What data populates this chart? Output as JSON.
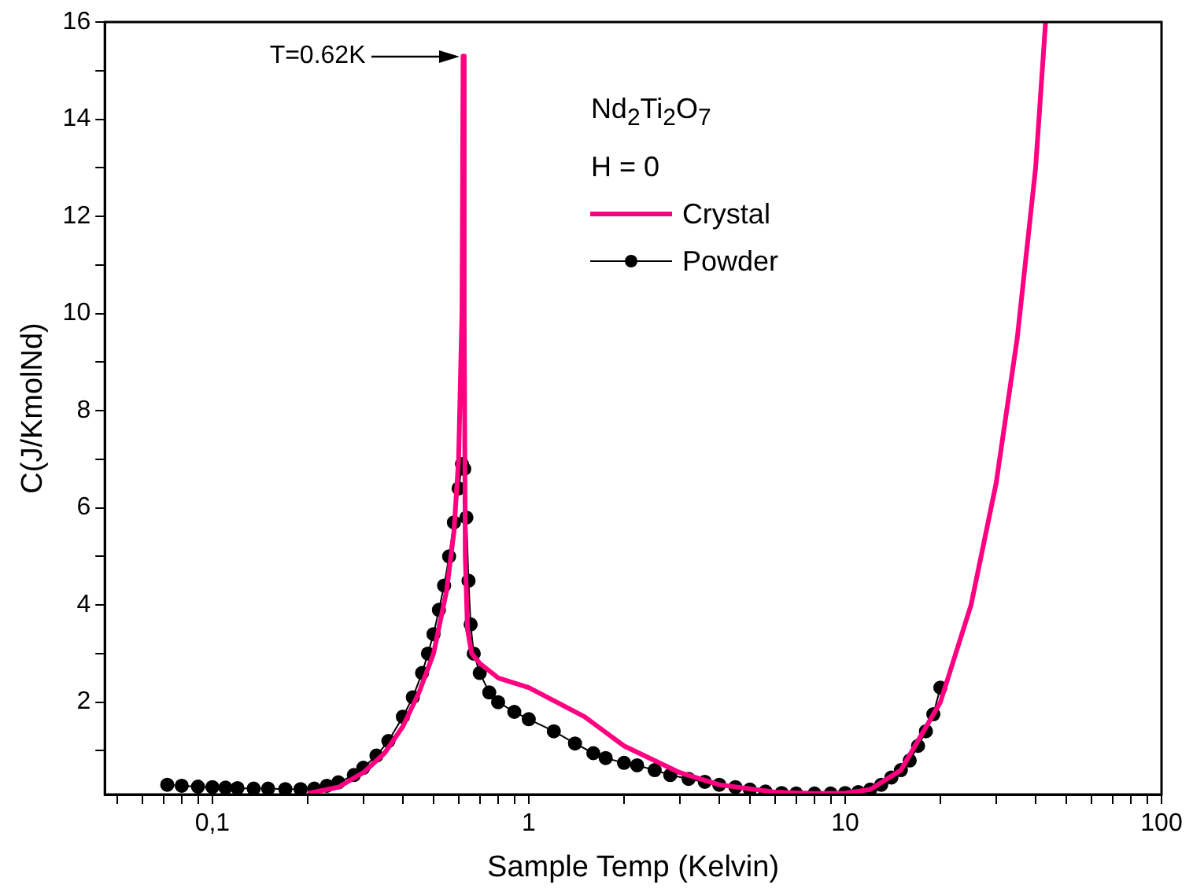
{
  "chart_data": {
    "type": "line",
    "xlabel": "Sample Temp (Kelvin)",
    "ylabel": "C(J/KmolNd)",
    "log": "x",
    "xlim": [
      0.0457,
      100
    ],
    "xticks": [
      {
        "value": 0.05,
        "label": null
      },
      {
        "value": 0.06,
        "label": null
      },
      {
        "value": 0.07,
        "label": null
      },
      {
        "value": 0.08,
        "label": null
      },
      {
        "value": 0.09,
        "label": null
      },
      {
        "value": 0.1,
        "label": "0,1"
      },
      {
        "value": 0.2,
        "label": null
      },
      {
        "value": 0.3,
        "label": null
      },
      {
        "value": 0.4,
        "label": null
      },
      {
        "value": 0.5,
        "label": null
      },
      {
        "value": 0.6,
        "label": null
      },
      {
        "value": 0.7,
        "label": null
      },
      {
        "value": 0.8,
        "label": null
      },
      {
        "value": 0.9,
        "label": null
      },
      1,
      {
        "value": 2,
        "label": null
      },
      {
        "value": 3,
        "label": null
      },
      {
        "value": 4,
        "label": null
      },
      {
        "value": 5,
        "label": null
      },
      {
        "value": 6,
        "label": null
      },
      {
        "value": 7,
        "label": null
      },
      {
        "value": 8,
        "label": null
      },
      {
        "value": 9,
        "label": null
      },
      10,
      {
        "value": 20,
        "label": null
      },
      {
        "value": 30,
        "label": null
      },
      {
        "value": 40,
        "label": null
      },
      {
        "value": 50,
        "label": null
      },
      {
        "value": 60,
        "label": null
      },
      {
        "value": 70,
        "label": null
      },
      {
        "value": 80,
        "label": null
      },
      {
        "value": 90,
        "label": null
      },
      100
    ],
    "ylim": [
      0.1,
      16
    ],
    "yticks": [
      {
        "value": 1,
        "label": null
      },
      2,
      {
        "value": 3,
        "label": null
      },
      4,
      {
        "value": 5,
        "label": null
      },
      6,
      {
        "value": 7,
        "label": null
      },
      8,
      {
        "value": 9,
        "label": null
      },
      10,
      {
        "value": 11,
        "label": null
      },
      12,
      {
        "value": 13,
        "label": null
      },
      14,
      {
        "value": 15,
        "label": null
      },
      16
    ],
    "grid": false,
    "legend": "top right",
    "legend_title": "Nd$_{2}$Ti$_{2}$O$_{7}$",
    "annotations": [
      "H = 0",
      "T=0.62K"
    ],
    "series": [
      {
        "name": "Crystal",
        "color": "#ff0080",
        "marker": "none",
        "x": [
          0.2,
          0.25,
          0.3,
          0.35,
          0.4,
          0.45,
          0.5,
          0.55,
          0.58,
          0.6,
          0.615,
          0.62,
          0.625,
          0.63,
          0.64,
          0.66,
          0.7,
          0.8,
          1,
          1.5,
          2,
          3,
          4,
          6,
          8,
          10,
          12,
          15,
          20,
          25,
          30,
          35,
          40,
          43
        ],
        "values": [
          0.12,
          0.25,
          0.55,
          0.95,
          1.5,
          2.2,
          3.0,
          4.3,
          5.5,
          7,
          10,
          15.3,
          10,
          5,
          3.5,
          3.0,
          2.8,
          2.5,
          2.3,
          1.7,
          1.1,
          0.55,
          0.3,
          0.15,
          0.12,
          0.13,
          0.2,
          0.6,
          2.0,
          4.0,
          6.5,
          9.5,
          13,
          16
        ]
      },
      {
        "name": "Powder",
        "color": "#000000",
        "marker": "circle",
        "x": [
          0.072,
          0.08,
          0.09,
          0.1,
          0.11,
          0.12,
          0.135,
          0.15,
          0.17,
          0.19,
          0.21,
          0.23,
          0.25,
          0.28,
          0.3,
          0.33,
          0.36,
          0.4,
          0.43,
          0.46,
          0.48,
          0.5,
          0.52,
          0.54,
          0.56,
          0.58,
          0.6,
          0.615,
          0.625,
          0.635,
          0.645,
          0.655,
          0.67,
          0.7,
          0.75,
          0.8,
          0.9,
          1.0,
          1.2,
          1.4,
          1.6,
          1.75,
          2.0,
          2.2,
          2.5,
          2.8,
          3.2,
          3.6,
          4,
          4.5,
          5,
          5.6,
          6.3,
          7,
          8,
          9,
          10,
          11,
          12,
          13,
          14,
          15,
          16,
          17,
          18,
          19,
          20
        ],
        "values": [
          0.3,
          0.28,
          0.26,
          0.25,
          0.24,
          0.23,
          0.22,
          0.22,
          0.21,
          0.21,
          0.22,
          0.28,
          0.35,
          0.5,
          0.65,
          0.9,
          1.2,
          1.7,
          2.1,
          2.6,
          3.0,
          3.4,
          3.9,
          4.4,
          5.0,
          5.7,
          6.4,
          6.9,
          6.8,
          5.8,
          4.5,
          3.6,
          3.0,
          2.6,
          2.2,
          2.0,
          1.8,
          1.65,
          1.4,
          1.15,
          0.95,
          0.85,
          0.75,
          0.7,
          0.6,
          0.5,
          0.42,
          0.36,
          0.3,
          0.25,
          0.2,
          0.16,
          0.13,
          0.12,
          0.12,
          0.12,
          0.13,
          0.15,
          0.2,
          0.3,
          0.45,
          0.6,
          0.8,
          1.1,
          1.4,
          1.75,
          2.3
        ]
      }
    ]
  }
}
